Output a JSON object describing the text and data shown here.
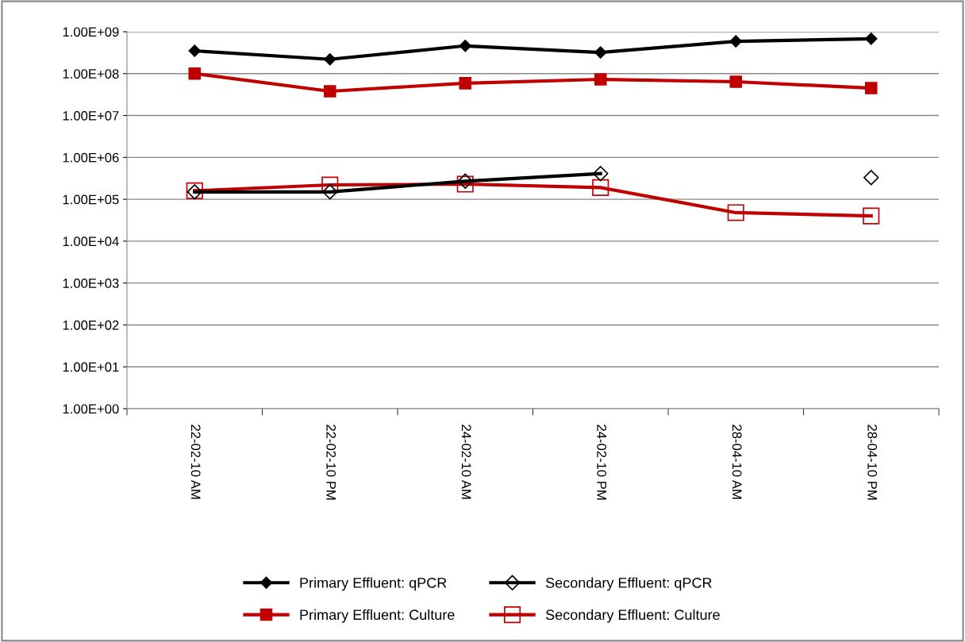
{
  "chart_data": {
    "type": "line",
    "categories": [
      "22-02-10 AM",
      "22-02-10 PM",
      "24-02-10 AM",
      "24-02-10 PM",
      "28-04-10 AM",
      "28-04-10 PM"
    ],
    "series": [
      {
        "name": "Primary Effluent: qPCR",
        "color": "#000000",
        "marker": "diamond",
        "values": [
          350000000.0,
          220000000.0,
          460000000.0,
          320000000.0,
          590000000.0,
          680000000.0
        ]
      },
      {
        "name": "Primary Effluent: Culture",
        "color": "#c00000",
        "marker": "square",
        "values": [
          100000000.0,
          38000000.0,
          59000000.0,
          73000000.0,
          64000000.0,
          45000000.0
        ]
      },
      {
        "name": "Secondary Effluent: qPCR",
        "color": "#000000",
        "marker": "diamond",
        "values": [
          150000.0,
          150000.0,
          270000.0,
          410000.0,
          null,
          330000.0
        ]
      },
      {
        "name": "Secondary Effluent: Culture",
        "color": "#c00000",
        "marker": "square",
        "values": [
          160000.0,
          220000.0,
          230000.0,
          190000.0,
          48000.0,
          40000.0
        ]
      }
    ],
    "log": "y",
    "ylim": [
      1,
      1000000000.0
    ],
    "yticks": [
      {
        "value": 1,
        "label": "1.00E+00"
      },
      {
        "value": 10,
        "label": "1.00E+01"
      },
      {
        "value": 100,
        "label": "1.00E+02"
      },
      {
        "value": 1000,
        "label": "1.00E+03"
      },
      {
        "value": 10000,
        "label": "1.00E+04"
      },
      {
        "value": 100000,
        "label": "1.00E+05"
      },
      {
        "value": 1000000,
        "label": "1.00E+06"
      },
      {
        "value": 10000000,
        "label": "1.00E+07"
      },
      {
        "value": 100000000,
        "label": "1.00E+08"
      },
      {
        "value": 1000000000,
        "label": "1.00E+09"
      }
    ],
    "grid": "y",
    "legend": "bottom",
    "line_style": "solid"
  }
}
